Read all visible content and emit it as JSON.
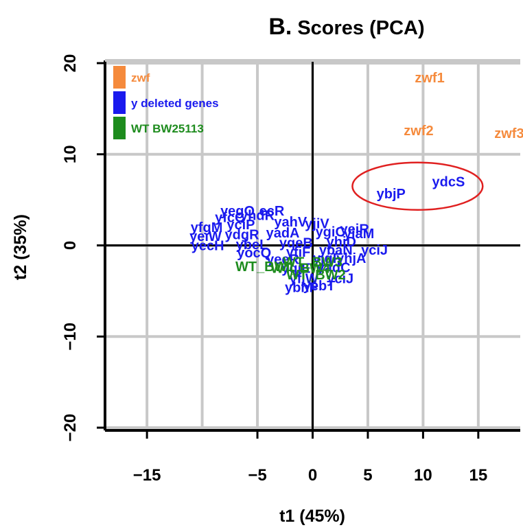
{
  "chart_data": {
    "type": "scatter",
    "title": "B. Scores (PCA)",
    "title_parts": {
      "letter": "B.",
      "rest": "Scores (PCA)"
    },
    "xlabel": "t1 (45%)",
    "ylabel": "t2 (35%)",
    "xlim": [
      -18.8,
      18.8
    ],
    "ylim": [
      -20.3,
      20.3
    ],
    "xticks": [
      -15,
      -5,
      0,
      5,
      10,
      15
    ],
    "xtick_labels": [
      "−15",
      "−5",
      "0",
      "5",
      "10",
      "15"
    ],
    "yticks": [
      -20,
      -10,
      0,
      10,
      20
    ],
    "ytick_labels": [
      "−20",
      "−10",
      "0",
      "10",
      "20"
    ],
    "grid": true,
    "grid_x": [
      -15,
      -10,
      -5,
      0,
      5,
      10,
      15
    ],
    "grid_y": [
      -20,
      -10,
      0,
      10,
      20
    ],
    "legend_position": "top-left",
    "colors": {
      "zwf": "#f58a3c",
      "y": "#1a1aee",
      "wt": "#1e8c1e",
      "grid": "#c8c8c8",
      "ellipse": "#e02020"
    },
    "legend": [
      {
        "label": "zwf",
        "color": "#f58a3c"
      },
      {
        "label": "y deleted genes",
        "color": "#1a1aee"
      },
      {
        "label": "WT BW25113",
        "color": "#1e8c1e"
      }
    ],
    "series": [
      {
        "name": "zwf",
        "color": "#f58a3c",
        "points": [
          {
            "x": 10.6,
            "y": 18.4,
            "label": "zwf1"
          },
          {
            "x": 9.6,
            "y": 12.6,
            "label": "zwf2"
          },
          {
            "x": 17.8,
            "y": 12.3,
            "label": "zwf3"
          }
        ]
      },
      {
        "name": "y deleted genes",
        "color": "#1a1aee",
        "points": [
          {
            "x": 12.3,
            "y": 7.0,
            "label": "ydcS"
          },
          {
            "x": 7.1,
            "y": 5.7,
            "label": "ybjP"
          },
          {
            "x": -6.8,
            "y": 3.8,
            "label": "yegQ"
          },
          {
            "x": -3.7,
            "y": 3.8,
            "label": "ecR"
          },
          {
            "x": -7.5,
            "y": 3.1,
            "label": "yfcC"
          },
          {
            "x": -5.0,
            "y": 3.3,
            "label": "yhdR"
          },
          {
            "x": -9.6,
            "y": 2.0,
            "label": "yfgM"
          },
          {
            "x": -6.5,
            "y": 2.3,
            "label": "yciP"
          },
          {
            "x": -2.0,
            "y": 2.6,
            "label": "yahV"
          },
          {
            "x": 0.4,
            "y": 2.4,
            "label": "yjiV"
          },
          {
            "x": -9.7,
            "y": 1.0,
            "label": "yeiW"
          },
          {
            "x": -6.4,
            "y": 1.2,
            "label": "ydgR"
          },
          {
            "x": -2.7,
            "y": 1.4,
            "label": "yadA"
          },
          {
            "x": 1.6,
            "y": 1.5,
            "label": "ygiC"
          },
          {
            "x": 4.2,
            "y": 1.3,
            "label": "yiaM"
          },
          {
            "x": 3.8,
            "y": 1.8,
            "label": "yeiR"
          },
          {
            "x": -9.5,
            "y": 0.0,
            "label": "yecH"
          },
          {
            "x": -5.5,
            "y": 0.1,
            "label": "ybeL"
          },
          {
            "x": -1.5,
            "y": 0.3,
            "label": "yqeB"
          },
          {
            "x": 2.6,
            "y": 0.4,
            "label": "yhiD"
          },
          {
            "x": -5.3,
            "y": -0.8,
            "label": "yocQ"
          },
          {
            "x": -1.3,
            "y": -0.7,
            "label": "yfiF"
          },
          {
            "x": 2.1,
            "y": -0.5,
            "label": "ybaN"
          },
          {
            "x": 5.6,
            "y": -0.5,
            "label": "yciJ"
          },
          {
            "x": -2.7,
            "y": -1.5,
            "label": "yeeR"
          },
          {
            "x": 1.3,
            "y": -1.4,
            "label": "yjgF"
          },
          {
            "x": 3.5,
            "y": -1.4,
            "label": "yhjA"
          },
          {
            "x": -1.5,
            "y": -2.5,
            "label": "yqjE"
          },
          {
            "x": 1.9,
            "y": -2.4,
            "label": "yadC"
          },
          {
            "x": -0.8,
            "y": -3.6,
            "label": "yfjW"
          },
          {
            "x": 2.5,
            "y": -3.6,
            "label": "yciJ"
          },
          {
            "x": -1.0,
            "y": -4.6,
            "label": "ybhP"
          },
          {
            "x": 0.6,
            "y": -4.4,
            "label": "yebT"
          }
        ]
      },
      {
        "name": "WT BW25113",
        "color": "#1e8c1e",
        "points": [
          {
            "x": 0.0,
            "y": -1.8,
            "label": "WT_BW3"
          },
          {
            "x": -4.3,
            "y": -2.3,
            "label": "WT_BW1"
          },
          {
            "x": -1.1,
            "y": -2.5,
            "label": "WT_BW4"
          },
          {
            "x": 0.3,
            "y": -3.2,
            "label": "WT_BW2"
          }
        ]
      }
    ],
    "annotations": [
      {
        "type": "ellipse",
        "cx": 9.5,
        "cy": 6.5,
        "rx": 5.9,
        "ry": 2.6,
        "color": "#e02020"
      }
    ]
  }
}
